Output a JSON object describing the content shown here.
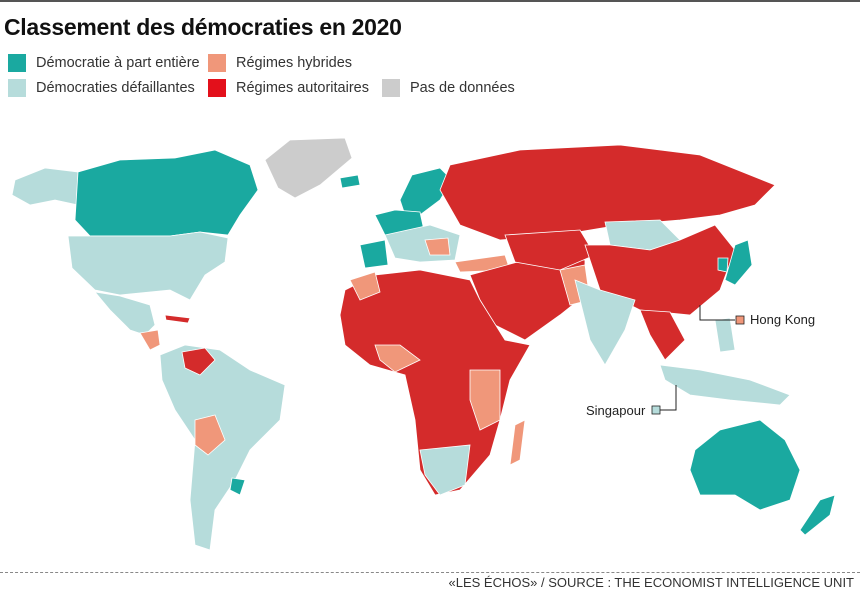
{
  "title": "Classement des démocraties en 2020",
  "legend": [
    {
      "label": "Démocratie à part entière",
      "color": "#1aa9a0"
    },
    {
      "label": "Démocraties défaillantes",
      "color": "#b6dcdb"
    },
    {
      "label": "Régimes hybrides",
      "color": "#f0977a"
    },
    {
      "label": "Régimes autoritaires",
      "color": "#d42b2b"
    },
    {
      "label": "Pas de données",
      "color": "#cccccc"
    }
  ],
  "annotations": {
    "hong_kong": "Hong Kong",
    "singapore": "Singapour"
  },
  "source": "«LES ÉCHOS» / SOURCE : THE ECONOMIST INTELLIGENCE UNIT"
}
